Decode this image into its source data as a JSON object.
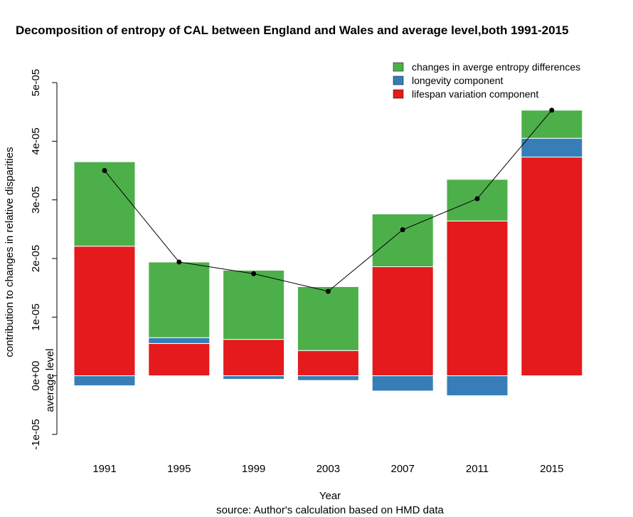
{
  "chart_data": {
    "type": "bar",
    "stacked": true,
    "title": "Decomposition of entropy of CAL between England and Wales and average level,both 1991-2015",
    "xlabel": "Year",
    "ylabel": "contribution to changes in relative disparities",
    "ylabel2": "average level",
    "caption": "source: Author's calculation based on HMD data",
    "categories": [
      "1991",
      "1995",
      "1999",
      "2003",
      "2007",
      "2011",
      "2015"
    ],
    "ylim": [
      -1e-05,
      5e-05
    ],
    "yticks": [
      -1e-05,
      0,
      1e-05,
      2e-05,
      3e-05,
      4e-05,
      5e-05
    ],
    "ytick_labels": [
      "-1e-05",
      "0e+00",
      "1e-05",
      "2e-05",
      "3e-05",
      "4e-05",
      "5e-05"
    ],
    "series": [
      {
        "name": "lifespan variation component",
        "color": "#E41A1C",
        "values": [
          2.21e-05,
          5.5e-06,
          6.2e-06,
          4.3e-06,
          1.86e-05,
          2.64e-05,
          3.73e-05
        ]
      },
      {
        "name": "longevity component",
        "color": "#377EB8",
        "values": [
          -1.7e-06,
          1e-06,
          -6e-07,
          -8e-07,
          -2.6e-06,
          -3.4e-06,
          3.2e-06
        ]
      },
      {
        "name": "changes in averge entropy differences",
        "color": "#4DAF4A",
        "values": [
          1.44e-05,
          1.29e-05,
          1.18e-05,
          1.09e-05,
          9e-06,
          7.1e-06,
          4.8e-06
        ]
      }
    ],
    "line": {
      "color": "#000000",
      "values": [
        3.5e-05,
        1.94e-05,
        1.74e-05,
        1.44e-05,
        2.49e-05,
        3.02e-05,
        4.53e-05
      ]
    },
    "legend": {
      "position": "top-right",
      "order": [
        "changes in averge entropy differences",
        "longevity component",
        "lifespan variation component"
      ]
    },
    "grid": false
  }
}
